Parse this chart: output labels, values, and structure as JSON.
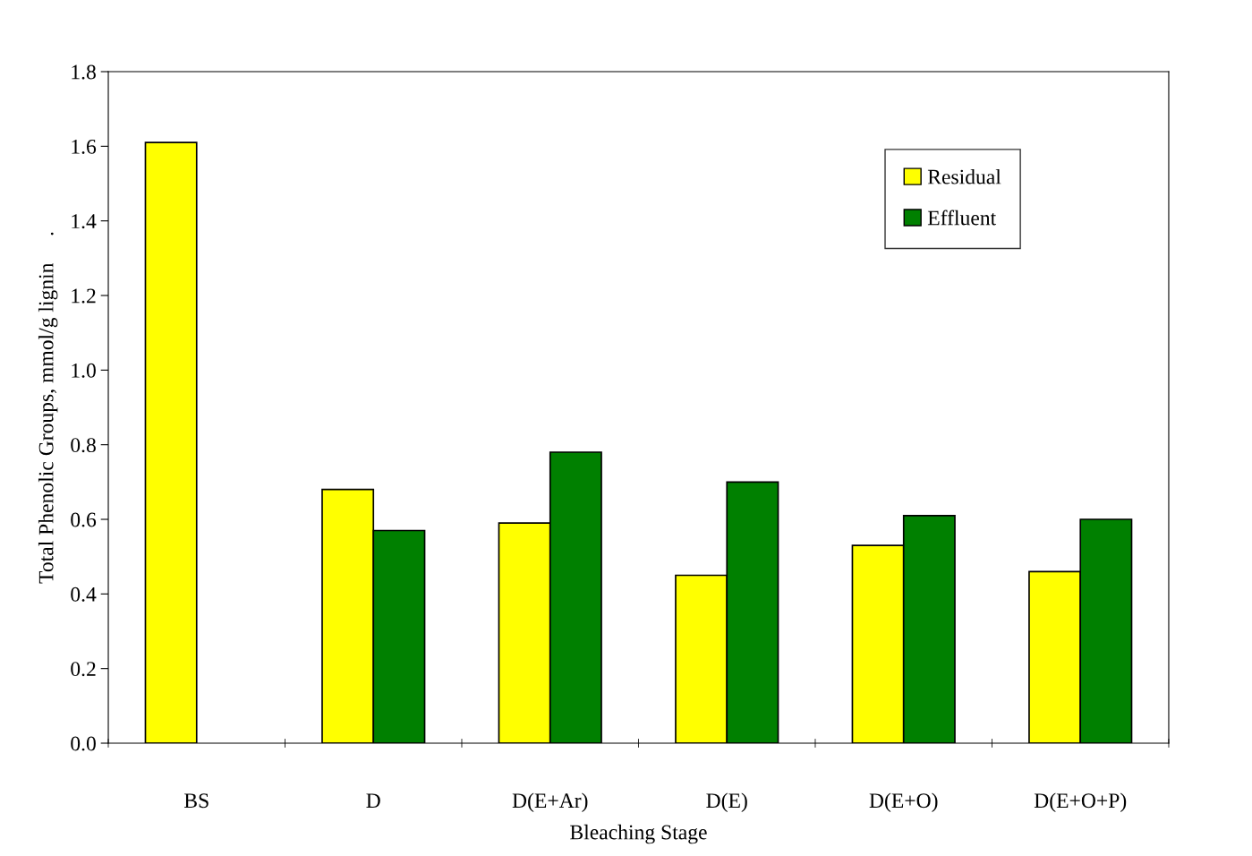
{
  "chart_data": {
    "type": "bar",
    "categories": [
      "BS",
      "D",
      "D(E+Ar)",
      "D(E)",
      "D(E+O)",
      "D(E+O+P)"
    ],
    "series": [
      {
        "name": "Residual",
        "color": "#ffff00",
        "values": [
          1.61,
          0.68,
          0.59,
          0.45,
          0.53,
          0.46
        ]
      },
      {
        "name": "Effluent",
        "color": "#008000",
        "values": [
          null,
          0.57,
          0.78,
          0.7,
          0.61,
          0.6
        ]
      }
    ],
    "xlabel": "Bleaching Stage",
    "ylabel": "Total Phenolic Groups, mmol/g lignin     .",
    "ylim": [
      0,
      1.8
    ],
    "yticks": [
      {
        "value": 0,
        "label": "0.0"
      },
      0.2,
      0.4,
      0.6,
      0.8,
      {
        "value": 1,
        "label": "1.0"
      },
      1.2,
      1.4,
      1.6,
      1.8
    ],
    "grid": false,
    "legend": "top right"
  }
}
